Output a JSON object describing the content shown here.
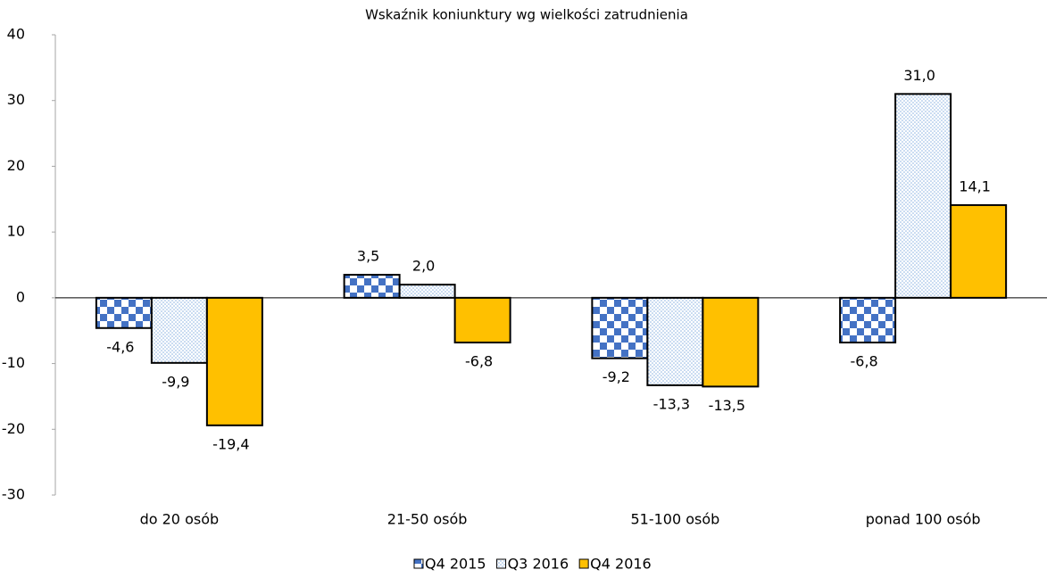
{
  "chart_data": {
    "type": "bar",
    "title": "Wskaźnik koniunktury wg wielkości zatrudnienia",
    "categories": [
      "do 20 osób",
      "21-50 osób",
      "51-100 osób",
      "ponad 100 osób"
    ],
    "series": [
      {
        "name": "Q4 2015",
        "color": "#4472c4",
        "pattern": "checker",
        "values": [
          -4.6,
          3.5,
          -9.2,
          -6.8
        ],
        "value_labels": [
          "-4,6",
          "3,5",
          "-9,2",
          "-6,8"
        ]
      },
      {
        "name": "Q3 2016",
        "color": "#8db4e2",
        "pattern": "dots",
        "values": [
          -9.9,
          2.0,
          -13.3,
          31.0
        ],
        "value_labels": [
          "-9,9",
          "2,0",
          "-13,3",
          "31,0"
        ]
      },
      {
        "name": "Q4 2016",
        "color": "#ffc000",
        "pattern": "solid",
        "values": [
          -19.4,
          -6.8,
          -13.5,
          14.1
        ],
        "value_labels": [
          "-19,4",
          "-6,8",
          "-13,5",
          "14,1"
        ]
      }
    ],
    "ylim": [
      -30,
      40
    ],
    "yticks": [
      -30,
      -20,
      -10,
      0,
      10,
      20,
      30,
      40
    ],
    "legend": "bottom"
  }
}
